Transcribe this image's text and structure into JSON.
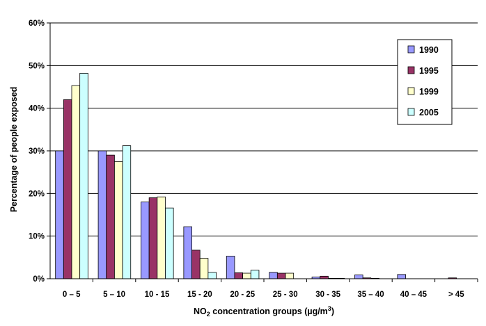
{
  "chart_data": {
    "type": "bar",
    "categories": [
      "0 – 5",
      "5 – 10",
      "10 - 15",
      "15 - 20",
      "20 - 25",
      "25 - 30",
      "30 - 35",
      "35 – 40",
      "40 – 45",
      "> 45"
    ],
    "series": [
      {
        "name": "1990",
        "color": "#9999ff",
        "values": [
          30,
          30,
          18,
          12.2,
          5.3,
          1.5,
          0.4,
          0.9,
          1.0,
          0
        ]
      },
      {
        "name": "1995",
        "color": "#993366",
        "values": [
          42,
          29,
          19,
          6.7,
          1.4,
          1.3,
          0.6,
          0.2,
          0,
          0.2
        ]
      },
      {
        "name": "1999",
        "color": "#ffffcc",
        "values": [
          45.3,
          27.5,
          19.2,
          4.8,
          1.3,
          1.3,
          0.1,
          0.1,
          0,
          0
        ]
      },
      {
        "name": "2005",
        "color": "#ccffff",
        "values": [
          48.2,
          31.2,
          16.6,
          1.5,
          2.0,
          0,
          0.1,
          0,
          0,
          0
        ]
      }
    ],
    "title": "",
    "xlabel_main": "NO",
    "xlabel_sub": "2",
    "xlabel_rest": " concentration groups (µg/m",
    "xlabel_sup": "3",
    "xlabel_end": ")",
    "ylabel": "Percentage of people exposed",
    "ylim": [
      0,
      60
    ],
    "yticks": [
      "0%",
      "10%",
      "20%",
      "30%",
      "40%",
      "50%",
      "60%"
    ],
    "grid": true,
    "legend_position": "top-right"
  }
}
